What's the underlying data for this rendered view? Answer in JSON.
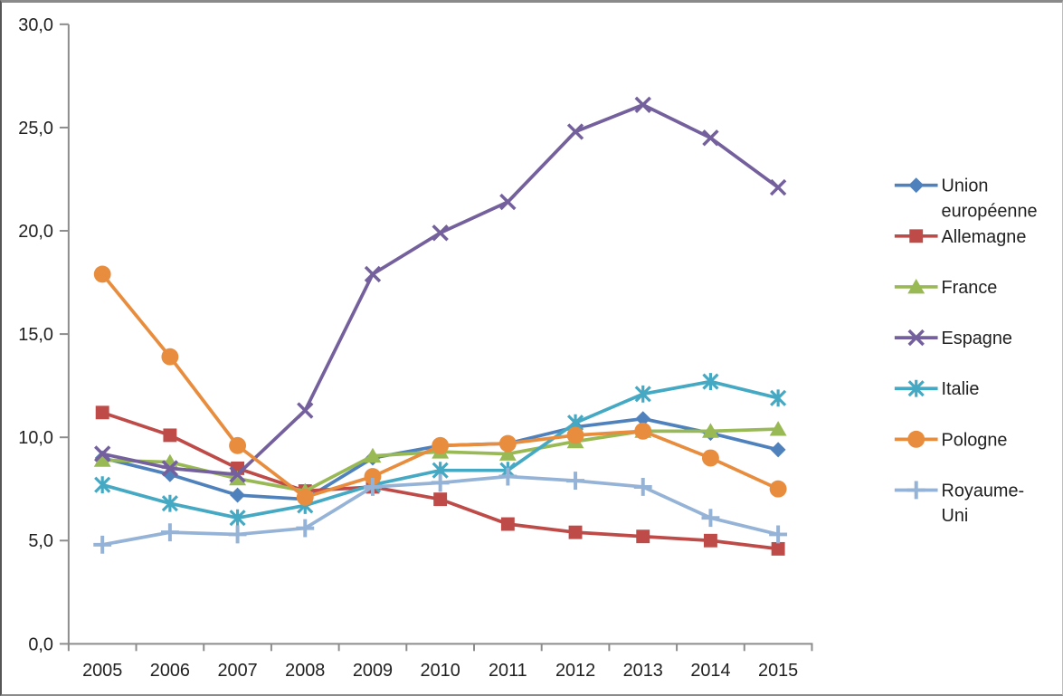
{
  "chart_data": {
    "type": "line",
    "title": "",
    "xlabel": "",
    "ylabel": "",
    "categories": [
      "2005",
      "2006",
      "2007",
      "2008",
      "2009",
      "2010",
      "2011",
      "2012",
      "2013",
      "2014",
      "2015"
    ],
    "ylim": [
      0,
      30
    ],
    "grid": false,
    "legend_position": "right",
    "axis_color": "#8c8c8c",
    "text_color": "#212121",
    "y_ticks": [
      {
        "value": 0,
        "label": "0,0"
      },
      {
        "value": 5,
        "label": "5,0"
      },
      {
        "value": 10,
        "label": "10,0"
      },
      {
        "value": 15,
        "label": "15,0"
      },
      {
        "value": 20,
        "label": "20,0"
      },
      {
        "value": 25,
        "label": "25,0"
      },
      {
        "value": 30,
        "label": "30,0"
      }
    ],
    "series": [
      {
        "name": "Union européenne",
        "legend_lines": [
          "Union",
          "européenne"
        ],
        "marker": "diamond",
        "color": "#4F81BD",
        "values": [
          9.0,
          8.2,
          7.2,
          7.0,
          9.0,
          9.6,
          9.7,
          10.5,
          10.9,
          10.2,
          9.4
        ]
      },
      {
        "name": "Allemagne",
        "legend_lines": [
          "Allemagne"
        ],
        "marker": "square",
        "color": "#BE4B48",
        "values": [
          11.2,
          10.1,
          8.5,
          7.4,
          7.6,
          7.0,
          5.8,
          5.4,
          5.2,
          5.0,
          4.6
        ]
      },
      {
        "name": "France",
        "legend_lines": [
          "France"
        ],
        "marker": "triangle",
        "color": "#98B954",
        "values": [
          8.9,
          8.8,
          8.0,
          7.4,
          9.1,
          9.3,
          9.2,
          9.8,
          10.3,
          10.3,
          10.4
        ]
      },
      {
        "name": "Espagne",
        "legend_lines": [
          "Espagne"
        ],
        "marker": "x",
        "color": "#73609C",
        "values": [
          9.2,
          8.5,
          8.2,
          11.3,
          17.9,
          19.9,
          21.4,
          24.8,
          26.1,
          24.5,
          22.1
        ]
      },
      {
        "name": "Italie",
        "legend_lines": [
          "Italie"
        ],
        "marker": "asterisk",
        "color": "#45A9C3",
        "values": [
          7.7,
          6.8,
          6.1,
          6.7,
          7.7,
          8.4,
          8.4,
          10.7,
          12.1,
          12.7,
          11.9
        ]
      },
      {
        "name": "Pologne",
        "legend_lines": [
          "Pologne"
        ],
        "marker": "circle",
        "color": "#E88C3E",
        "values": [
          17.9,
          13.9,
          9.6,
          7.1,
          8.1,
          9.6,
          9.7,
          10.1,
          10.3,
          9.0,
          7.5
        ]
      },
      {
        "name": "Royaume-Uni",
        "legend_lines": [
          "Royaume-",
          "Uni"
        ],
        "marker": "plus",
        "color": "#95B3D7",
        "values": [
          4.8,
          5.4,
          5.3,
          5.6,
          7.6,
          7.8,
          8.1,
          7.9,
          7.6,
          6.1,
          5.3
        ]
      }
    ]
  }
}
